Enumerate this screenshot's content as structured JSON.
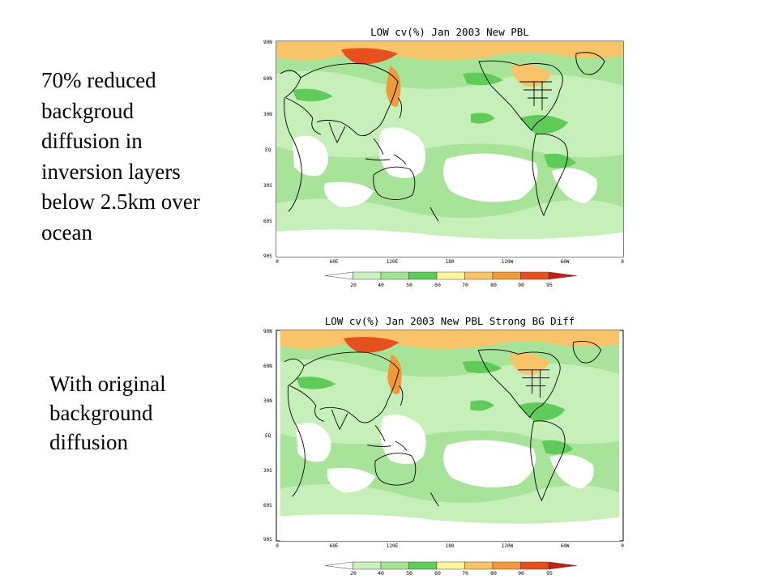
{
  "slide": {
    "top_caption": "70% reduced\nbackgroud\ndiffusion in\ninversion layers\nbelow 2.5km over\nocean",
    "bottom_caption": "With original\nbackground\ndiffusion"
  },
  "panels": [
    {
      "title": "LOW cv(%) Jan 2003 New PBL",
      "lat_labels": [
        "90N",
        "60N",
        "30N",
        "EQ",
        "30S",
        "60S",
        "90S"
      ],
      "lon_labels": [
        "0",
        "60E",
        "120E",
        "180",
        "120W",
        "60W",
        "0"
      ]
    },
    {
      "title": "LOW cv(%) Jan 2003 New PBL Strong BG Diff",
      "lat_labels": [
        "90N",
        "60N",
        "30N",
        "EQ",
        "30S",
        "60S",
        "90S"
      ],
      "lon_labels": [
        "0",
        "60E",
        "120E",
        "180",
        "120W",
        "60W",
        "0"
      ]
    }
  ],
  "colorbar": {
    "labels": [
      "20",
      "40",
      "50",
      "60",
      "70",
      "80",
      "90",
      "95"
    ],
    "colors": [
      "#ffffff",
      "#cdf0c0",
      "#a4e393",
      "#5fcc5a",
      "#fff4a0",
      "#f8c46a",
      "#f09a3c",
      "#e4501e",
      "#c81e14"
    ]
  }
}
